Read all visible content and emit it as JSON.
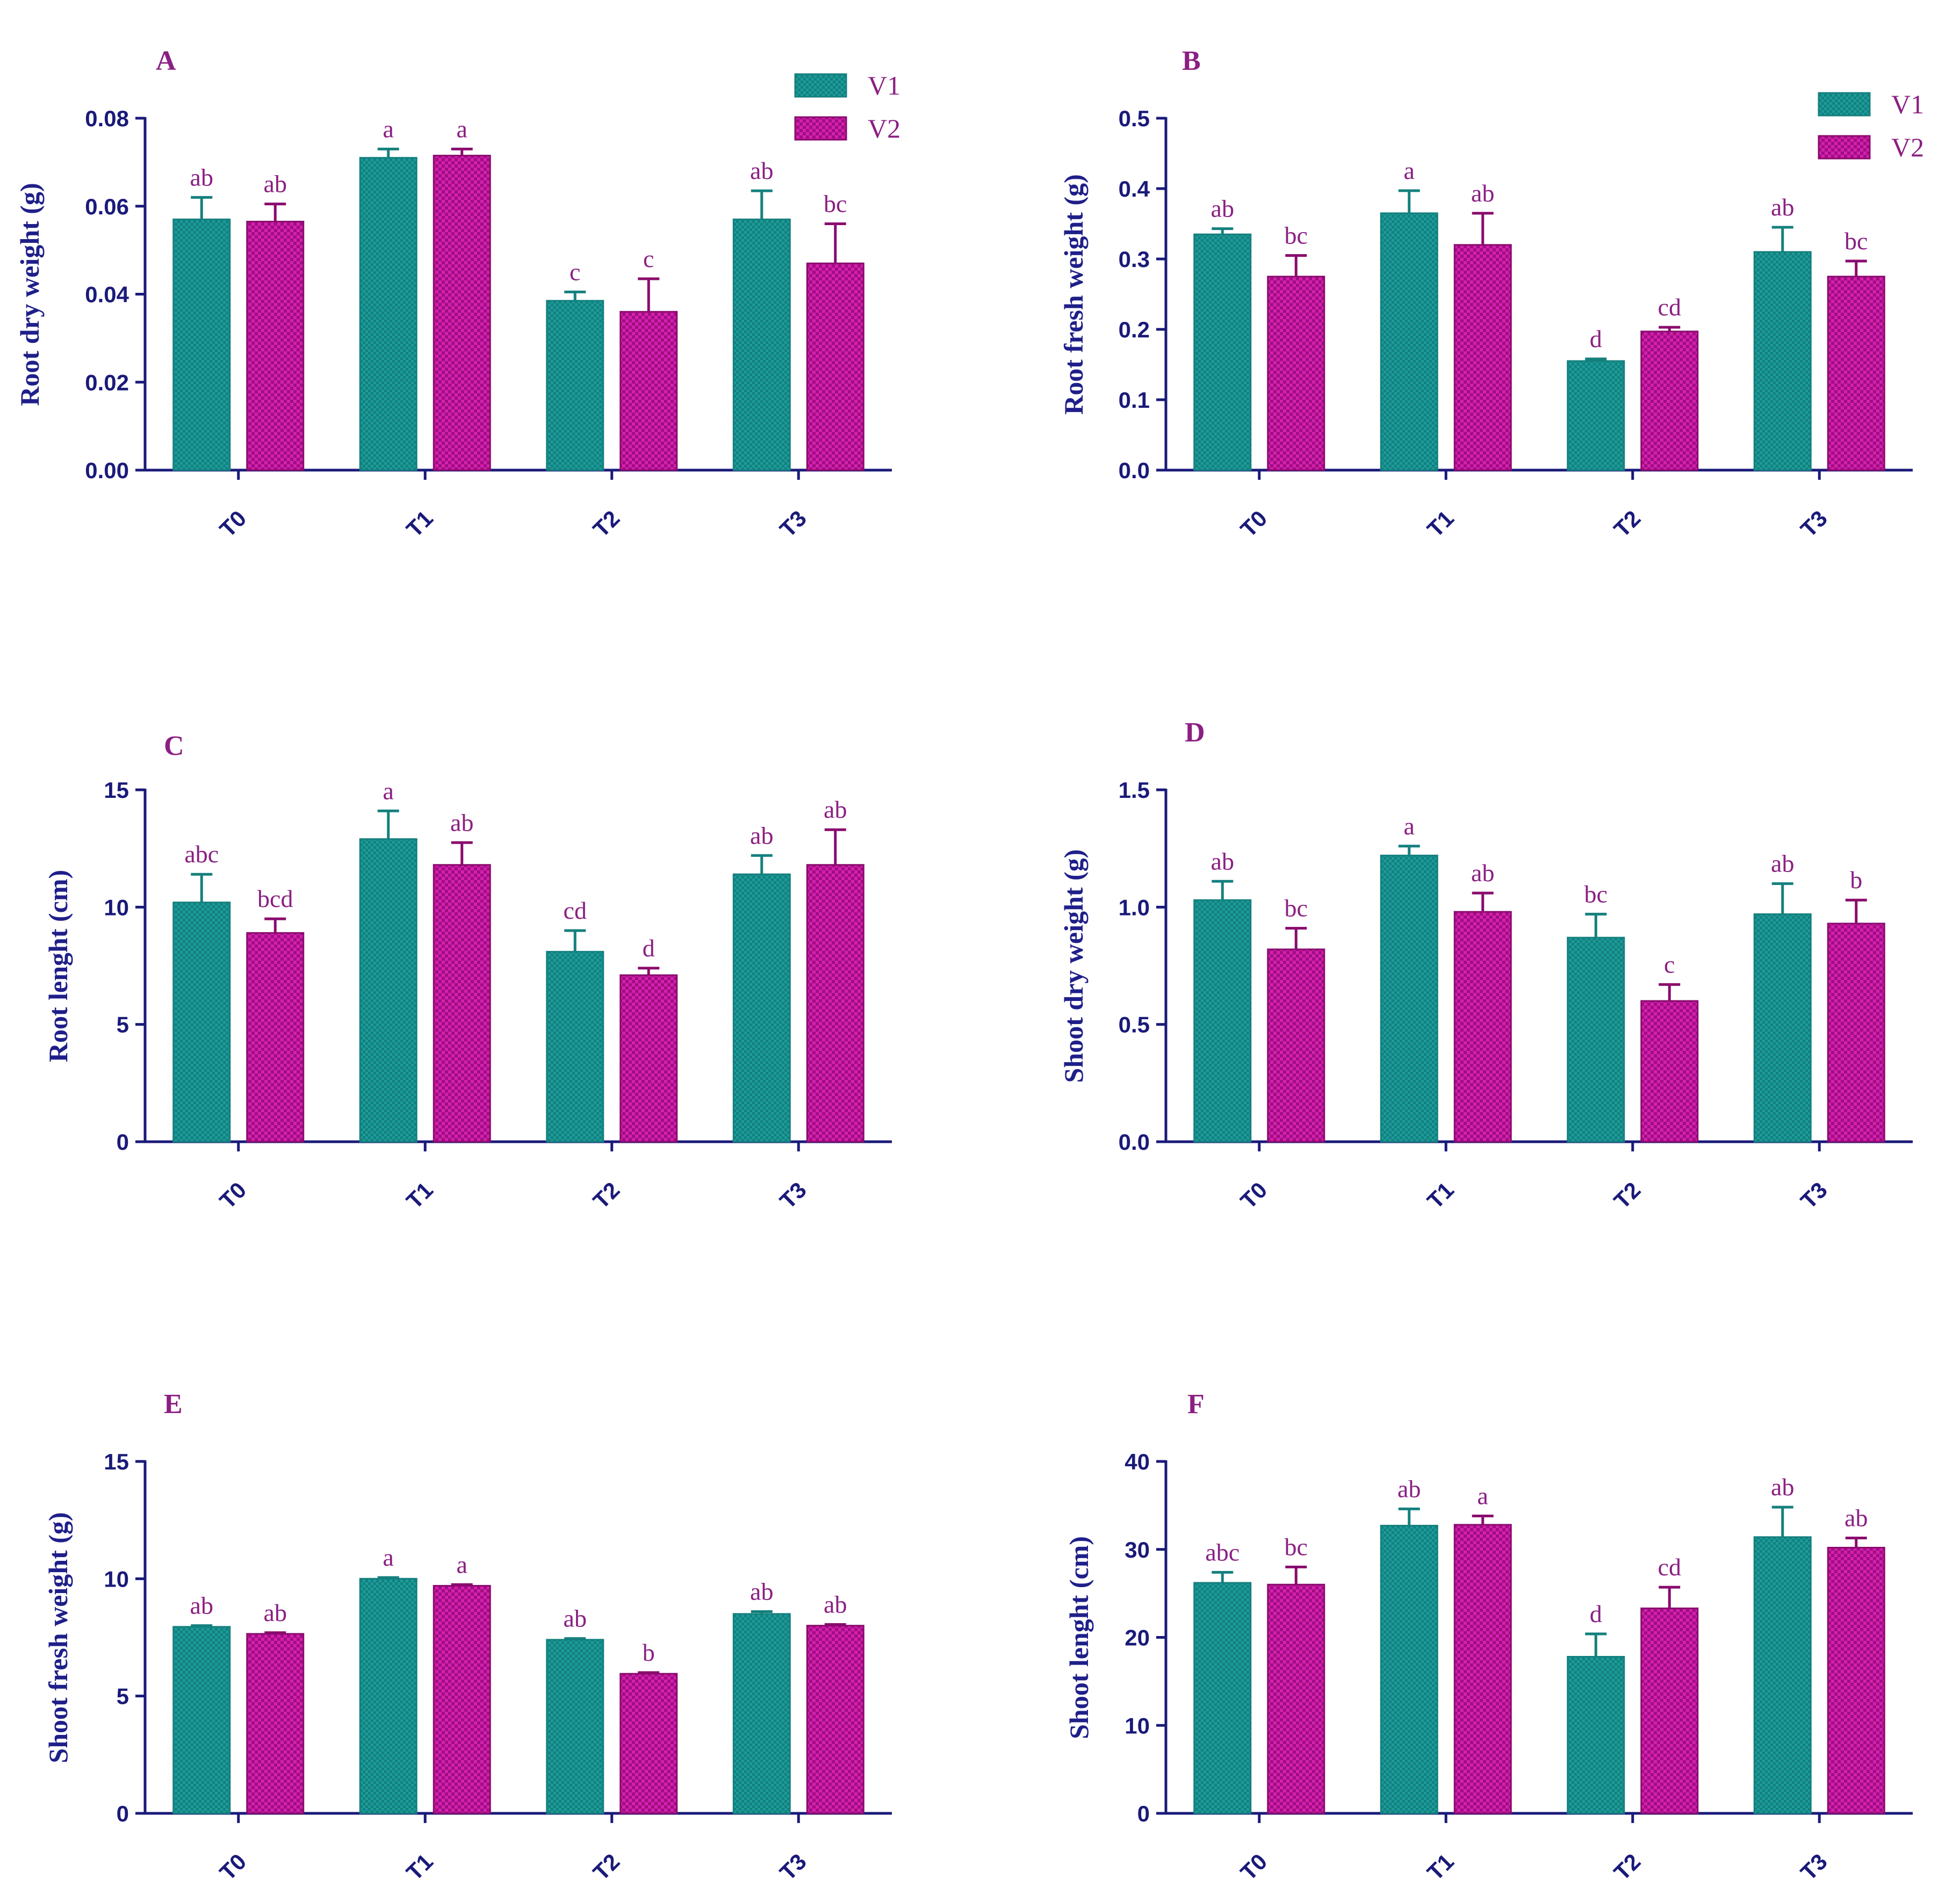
{
  "colors": {
    "v1_fill": "#1b9c9a",
    "v2_fill": "#cc1aa8",
    "axis": "#1a1a7a",
    "label": "#8B1F83"
  },
  "legend": {
    "entries": [
      "V1",
      "V2"
    ]
  },
  "chart_data": [
    {
      "panel": "A",
      "type": "bar",
      "ylabel": "Root dry  weight (g)",
      "categories": [
        "T0",
        "T1",
        "T2",
        "T3"
      ],
      "ylim": [
        0,
        0.08
      ],
      "yticks": [
        "0.00",
        "0.02",
        "0.04",
        "0.06",
        "0.08"
      ],
      "ytick_values": [
        0,
        0.02,
        0.04,
        0.06,
        0.08
      ],
      "legend_position": "top-right",
      "series": [
        {
          "name": "V1",
          "values": [
            0.057,
            0.071,
            0.0385,
            0.057
          ],
          "errors": [
            0.005,
            0.002,
            0.002,
            0.0065
          ],
          "letters": [
            "ab",
            "a",
            "c",
            "ab"
          ]
        },
        {
          "name": "V2",
          "values": [
            0.0565,
            0.0715,
            0.036,
            0.047
          ],
          "errors": [
            0.004,
            0.0015,
            0.0075,
            0.009
          ],
          "letters": [
            "ab",
            "a",
            "c",
            "bc"
          ]
        }
      ]
    },
    {
      "panel": "B",
      "type": "bar",
      "ylabel": "Root fresh weight (g)",
      "categories": [
        "T0",
        "T1",
        "T2",
        "T3"
      ],
      "ylim": [
        0,
        0.5
      ],
      "yticks": [
        "0.0",
        "0.1",
        "0.2",
        "0.3",
        "0.4",
        "0.5"
      ],
      "ytick_values": [
        0,
        0.1,
        0.2,
        0.3,
        0.4,
        0.5
      ],
      "legend_position": "top-right",
      "series": [
        {
          "name": "V1",
          "values": [
            0.335,
            0.365,
            0.155,
            0.31
          ],
          "errors": [
            0.008,
            0.032,
            0.003,
            0.035
          ],
          "letters": [
            "ab",
            "a",
            "d",
            "ab"
          ]
        },
        {
          "name": "V2",
          "values": [
            0.275,
            0.32,
            0.197,
            0.275
          ],
          "errors": [
            0.03,
            0.045,
            0.006,
            0.022
          ],
          "letters": [
            "bc",
            "ab",
            "cd",
            "bc"
          ]
        }
      ]
    },
    {
      "panel": "C",
      "type": "bar",
      "ylabel": "Root lenght (cm)",
      "categories": [
        "T0",
        "T1",
        "T2",
        "T3"
      ],
      "ylim": [
        0,
        15
      ],
      "yticks": [
        "0",
        "5",
        "10",
        "15"
      ],
      "ytick_values": [
        0,
        5,
        10,
        15
      ],
      "series": [
        {
          "name": "V1",
          "values": [
            10.2,
            12.9,
            8.1,
            11.4
          ],
          "errors": [
            1.2,
            1.2,
            0.9,
            0.8
          ],
          "letters": [
            "abc",
            "a",
            "cd",
            "ab"
          ]
        },
        {
          "name": "V2",
          "values": [
            8.9,
            11.8,
            7.1,
            11.8
          ],
          "errors": [
            0.6,
            0.95,
            0.3,
            1.5
          ],
          "letters": [
            "bcd",
            "ab",
            "d",
            "ab"
          ]
        }
      ]
    },
    {
      "panel": "D",
      "type": "bar",
      "ylabel": "Shoot dry weight (g)",
      "categories": [
        "T0",
        "T1",
        "T2",
        "T3"
      ],
      "ylim": [
        0,
        1.5
      ],
      "yticks": [
        "0.0",
        "0.5",
        "1.0",
        "1.5"
      ],
      "ytick_values": [
        0,
        0.5,
        1.0,
        1.5
      ],
      "series": [
        {
          "name": "V1",
          "values": [
            1.03,
            1.22,
            0.87,
            0.97
          ],
          "errors": [
            0.08,
            0.04,
            0.1,
            0.13
          ],
          "letters": [
            "ab",
            "a",
            "bc",
            "ab"
          ]
        },
        {
          "name": "V2",
          "values": [
            0.82,
            0.98,
            0.6,
            0.93
          ],
          "errors": [
            0.09,
            0.08,
            0.07,
            0.1
          ],
          "letters": [
            "bc",
            "ab",
            "c",
            "b"
          ]
        }
      ]
    },
    {
      "panel": "E",
      "type": "bar",
      "ylabel": "Shoot fresh weight (g)",
      "categories": [
        "T0",
        "T1",
        "T2",
        "T3"
      ],
      "ylim": [
        0,
        15
      ],
      "yticks": [
        "0",
        "5",
        "10",
        "15"
      ],
      "ytick_values": [
        0,
        5,
        10,
        15
      ],
      "series": [
        {
          "name": "V1",
          "values": [
            7.95,
            10.0,
            7.4,
            8.5
          ],
          "errors": [
            0.05,
            0.05,
            0.05,
            0.1
          ],
          "letters": [
            "ab",
            "a",
            "ab",
            "ab"
          ]
        },
        {
          "name": "V2",
          "values": [
            7.65,
            9.7,
            5.95,
            8.0
          ],
          "errors": [
            0.05,
            0.05,
            0.05,
            0.05
          ],
          "letters": [
            "ab",
            "a",
            "b",
            "ab"
          ]
        }
      ]
    },
    {
      "panel": "F",
      "type": "bar",
      "ylabel": "Shoot lenght (cm)",
      "categories": [
        "T0",
        "T1",
        "T2",
        "T3"
      ],
      "ylim": [
        0,
        40
      ],
      "yticks": [
        "0",
        "10",
        "20",
        "30",
        "40"
      ],
      "ytick_values": [
        0,
        10,
        20,
        30,
        40
      ],
      "series": [
        {
          "name": "V1",
          "values": [
            26.2,
            32.7,
            17.8,
            31.4
          ],
          "errors": [
            1.2,
            1.9,
            2.6,
            3.4
          ],
          "letters": [
            "abc",
            "ab",
            "d",
            "ab"
          ]
        },
        {
          "name": "V2",
          "values": [
            26.0,
            32.8,
            23.3,
            30.2
          ],
          "errors": [
            2.0,
            1.0,
            2.4,
            1.1
          ],
          "letters": [
            "bc",
            "a",
            "cd",
            "ab"
          ]
        }
      ]
    }
  ]
}
